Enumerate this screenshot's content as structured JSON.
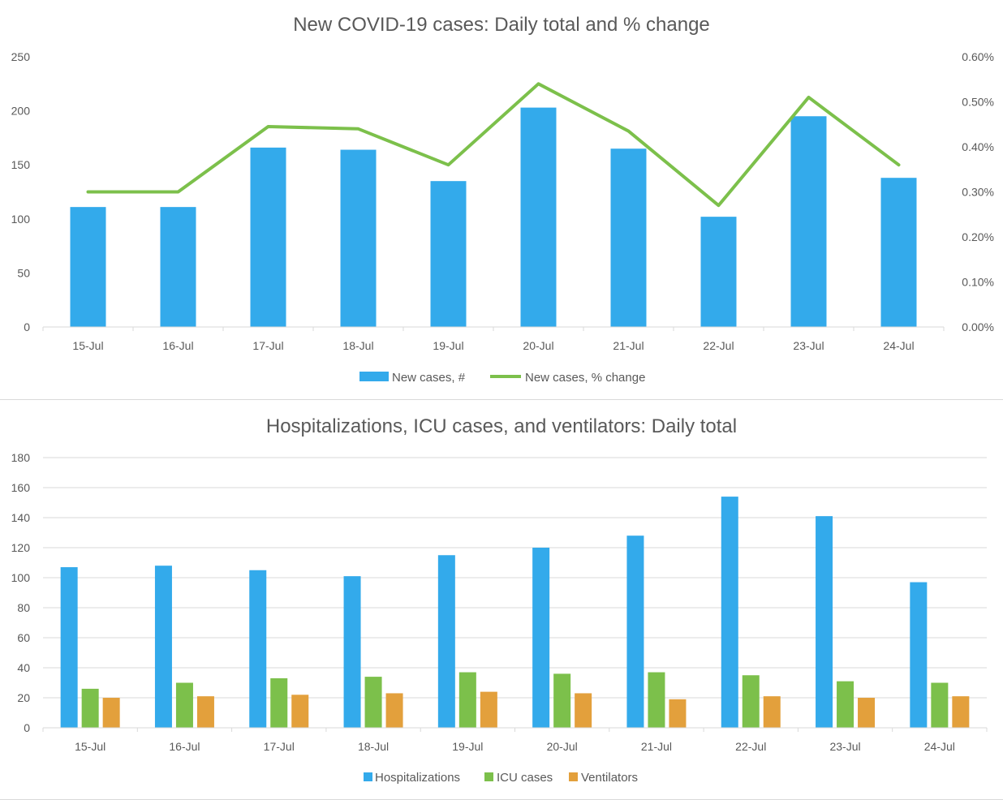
{
  "charts": [
    {
      "type": "bar+line",
      "title": "New COVID-19 cases: Daily total and % change",
      "categories": [
        "15-Jul",
        "16-Jul",
        "17-Jul",
        "18-Jul",
        "19-Jul",
        "20-Jul",
        "21-Jul",
        "22-Jul",
        "23-Jul",
        "24-Jul"
      ],
      "ylim_left": [
        0,
        250
      ],
      "yticks_left": [
        "0",
        "50",
        "100",
        "150",
        "200",
        "250"
      ],
      "ylim_right": [
        0,
        0.6
      ],
      "yticks_right": [
        "0.00%",
        "0.10%",
        "0.20%",
        "0.30%",
        "0.40%",
        "0.50%",
        "0.60%"
      ],
      "grid": false,
      "legend_position": "bottom",
      "series": [
        {
          "name": "New cases, #",
          "kind": "bar",
          "axis": "left",
          "color": "#33aaeb",
          "values": [
            111,
            111,
            166,
            164,
            135,
            203,
            165,
            102,
            195,
            138
          ]
        },
        {
          "name": "New cases, % change",
          "kind": "line",
          "axis": "right",
          "color": "#7cc04b",
          "values": [
            0.3,
            0.3,
            0.445,
            0.44,
            0.36,
            0.54,
            0.435,
            0.27,
            0.51,
            0.36
          ]
        }
      ]
    },
    {
      "type": "bar",
      "title": "Hospitalizations, ICU cases, and ventilators: Daily total",
      "categories": [
        "15-Jul",
        "16-Jul",
        "17-Jul",
        "18-Jul",
        "19-Jul",
        "20-Jul",
        "21-Jul",
        "22-Jul",
        "23-Jul",
        "24-Jul"
      ],
      "ylim": [
        0,
        180
      ],
      "yticks": [
        "0",
        "20",
        "40",
        "60",
        "80",
        "100",
        "120",
        "140",
        "160",
        "180"
      ],
      "grid": true,
      "legend_position": "bottom",
      "series": [
        {
          "name": "Hospitalizations",
          "color": "#33aaeb",
          "values": [
            107,
            108,
            105,
            101,
            115,
            120,
            128,
            154,
            141,
            97
          ]
        },
        {
          "name": "ICU cases",
          "color": "#7cc04b",
          "values": [
            26,
            30,
            33,
            34,
            37,
            36,
            37,
            35,
            31,
            30
          ]
        },
        {
          "name": "Ventilators",
          "color": "#e3a03c",
          "values": [
            20,
            21,
            22,
            23,
            24,
            23,
            19,
            21,
            20,
            21
          ]
        }
      ]
    }
  ]
}
